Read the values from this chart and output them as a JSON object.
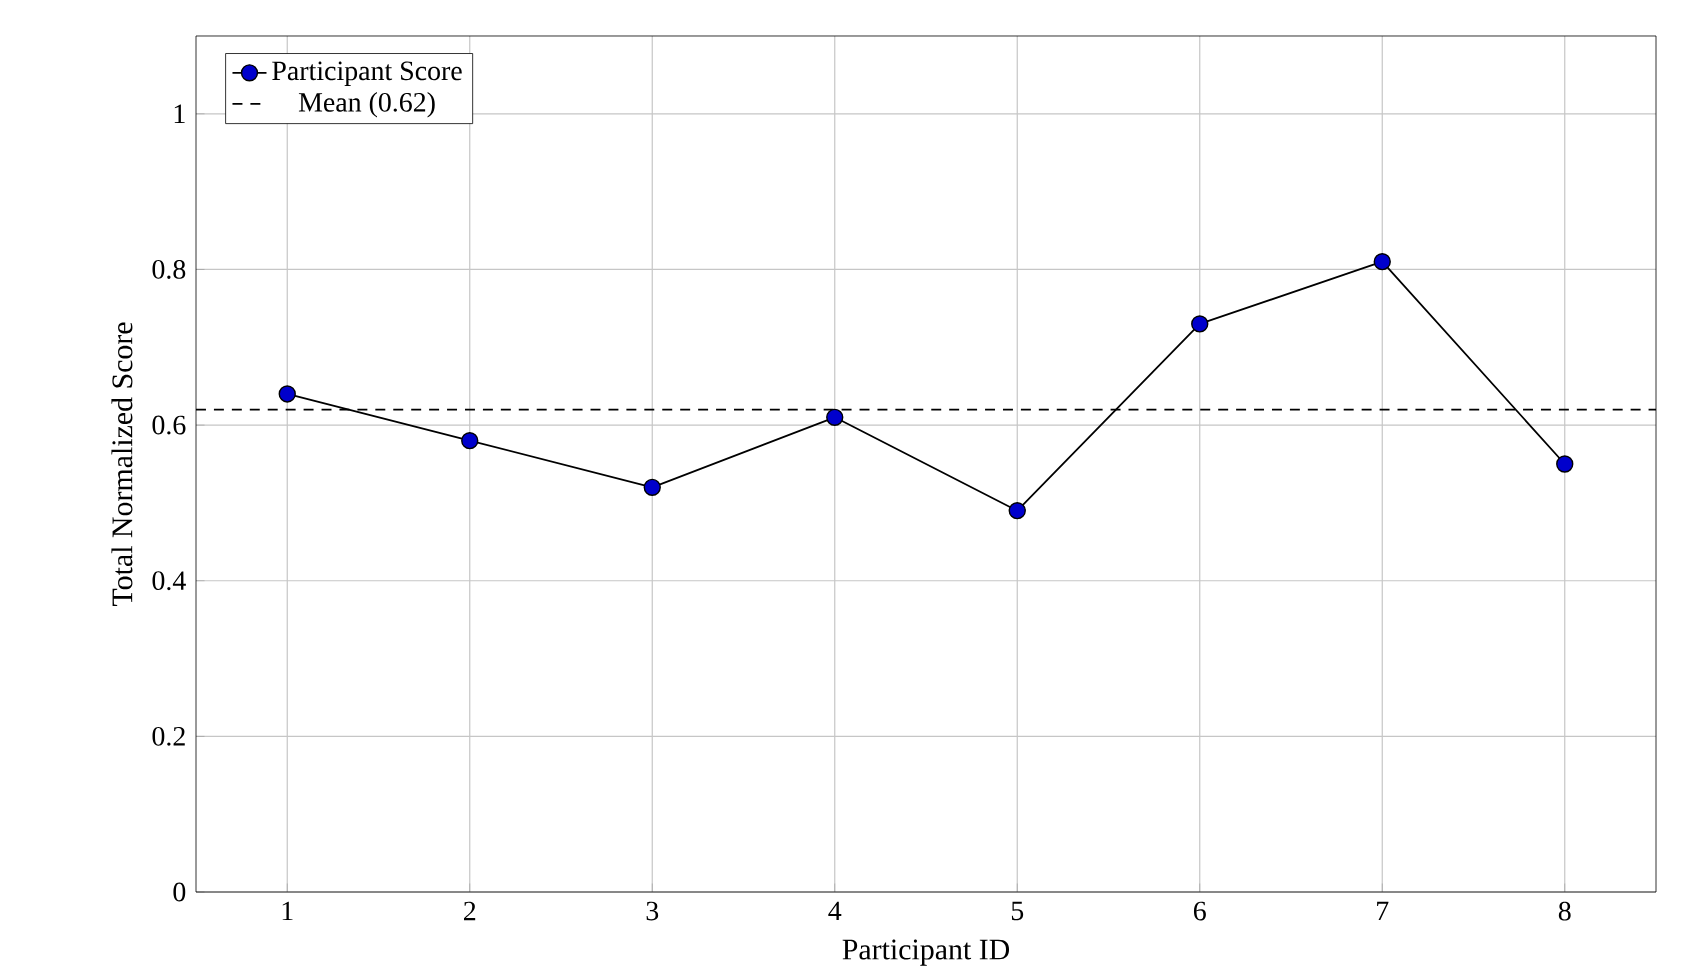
{
  "chart_data": {
    "type": "line",
    "xlabel": "Participant ID",
    "ylabel": "Total Normalized Score",
    "x": [
      1,
      2,
      3,
      4,
      5,
      6,
      7,
      8
    ],
    "series": [
      {
        "name": "Participant Score",
        "color": "#0000cc",
        "values": [
          0.64,
          0.58,
          0.52,
          0.61,
          0.49,
          0.73,
          0.81,
          0.55
        ]
      }
    ],
    "xlim": [
      0.5,
      8.5
    ],
    "xticks": [
      1,
      2,
      3,
      4,
      5,
      6,
      7,
      8
    ],
    "ylim": [
      0,
      1.1
    ],
    "yticks": [
      0,
      0.2,
      0.4,
      0.6,
      0.8,
      1
    ],
    "ref_lines": [
      {
        "axis": "y",
        "value": 0.62,
        "label": "Mean (0.62)",
        "color": "#000000",
        "line_style": "dashed"
      }
    ],
    "grid": true,
    "legend": "top left",
    "marker": "circle",
    "line_style": "solid"
  }
}
